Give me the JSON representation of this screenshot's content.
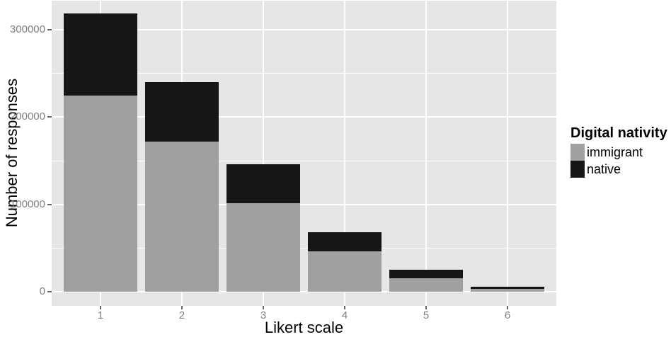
{
  "chart_data": {
    "type": "bar",
    "stacked": true,
    "title": "",
    "xlabel": "Likert scale",
    "ylabel": "Number of responses",
    "categories": [
      "1",
      "2",
      "3",
      "4",
      "5",
      "6"
    ],
    "series": [
      {
        "name": "immigrant",
        "color": "#A0A0A0",
        "values": [
          225000,
          172000,
          101000,
          46000,
          15000,
          2700
        ]
      },
      {
        "name": "native",
        "color": "#161616",
        "values": [
          94000,
          68000,
          45000,
          22000,
          10000,
          3000
        ]
      }
    ],
    "y_ticks": [
      0,
      100000,
      200000,
      300000
    ],
    "y_tick_labels": [
      "0",
      "100000",
      "200000",
      "300000"
    ],
    "y_minor_ticks": [
      50000,
      150000,
      250000
    ],
    "ylim": [
      -16500,
      333600
    ],
    "bar_width_fraction": 0.9,
    "grid": "white major and minor horizontal lines plus vertical category lines on gray panel",
    "legend_position": "right",
    "legend_title": "Digital nativity"
  },
  "legend": {
    "title": "Digital nativity",
    "items": [
      {
        "label": "immigrant",
        "color": "#A0A0A0"
      },
      {
        "label": "native",
        "color": "#161616"
      }
    ]
  },
  "colors": {
    "background": "#FFFFFF",
    "panel_background": "#E6E6E6",
    "gridline": "#FFFFFF",
    "tick_label": "#7F7F7F",
    "tick_mark": "#666666",
    "axis_title": "#000000"
  }
}
